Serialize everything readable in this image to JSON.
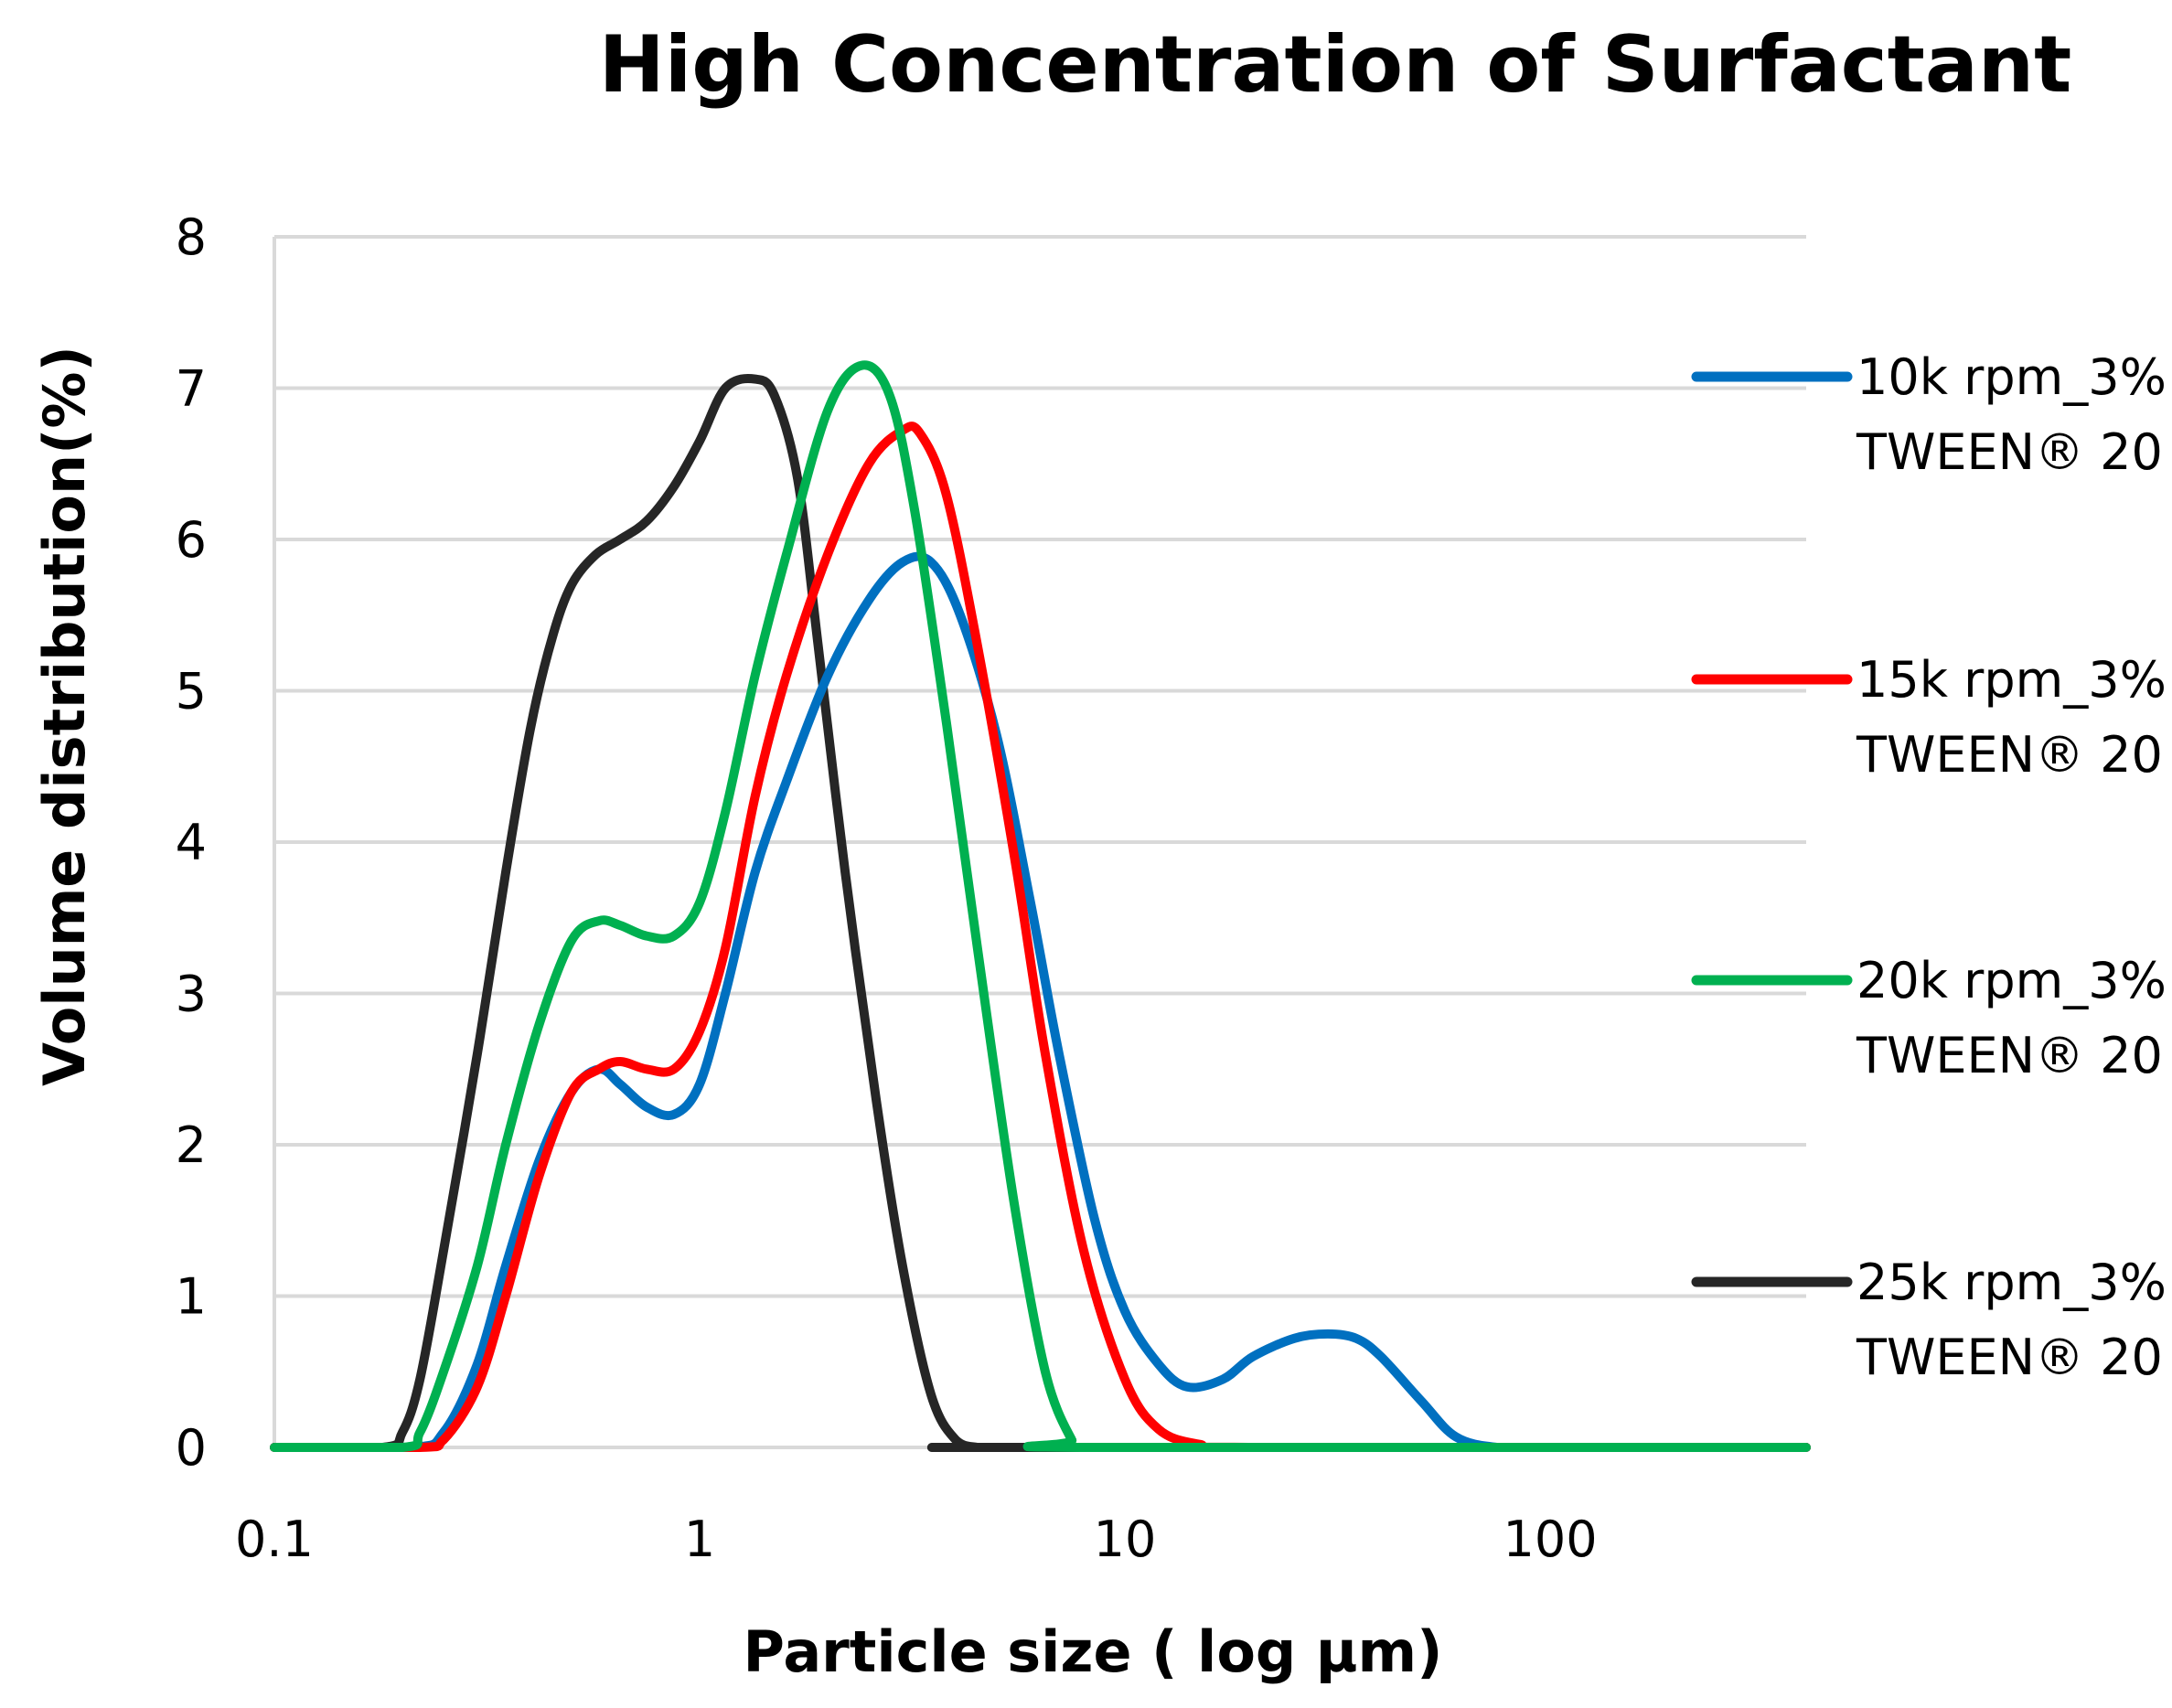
{
  "chart_data": {
    "type": "line",
    "title": "High Concentration of Surfactant",
    "xlabel": "Particle size ( log µm)",
    "ylabel": "Volume distribution(%)",
    "xscale": "log",
    "xlim": [
      0.1,
      400
    ],
    "ylim": [
      0,
      8
    ],
    "xticks": [
      {
        "value": 0.1,
        "label": "0.1"
      },
      {
        "value": 1,
        "label": "1"
      },
      {
        "value": 10,
        "label": "10"
      },
      {
        "value": 100,
        "label": "100"
      }
    ],
    "yticks": [
      {
        "value": 0,
        "label": "0"
      },
      {
        "value": 1,
        "label": "1"
      },
      {
        "value": 2,
        "label": "2"
      },
      {
        "value": 3,
        "label": "3"
      },
      {
        "value": 4,
        "label": "4"
      },
      {
        "value": 5,
        "label": "5"
      },
      {
        "value": 6,
        "label": "6"
      },
      {
        "value": 7,
        "label": "7"
      },
      {
        "value": 8,
        "label": "8"
      }
    ],
    "grid": true,
    "legend_position": "right",
    "series": [
      {
        "name": "10k rpm_3% TWEEN® 20",
        "legend_line1": "10k rpm_3%",
        "legend_line2": "TWEEN® 20",
        "color": "#0070C0",
        "x": [
          0.1,
          0.21,
          0.25,
          0.3,
          0.35,
          0.42,
          0.5,
          0.58,
          0.65,
          0.75,
          0.87,
          1.0,
          1.15,
          1.35,
          1.6,
          2.0,
          2.5,
          3.0,
          3.5,
          4.1,
          5.0,
          6.0,
          7.0,
          8.5,
          10,
          12,
          14,
          17,
          20,
          25,
          30,
          35,
          40,
          50,
          60,
          75,
          100,
          200,
          400
        ],
        "y": [
          0,
          0,
          0.1,
          0.55,
          1.2,
          1.9,
          2.35,
          2.5,
          2.4,
          2.25,
          2.2,
          2.4,
          3.0,
          3.8,
          4.4,
          5.1,
          5.6,
          5.85,
          5.85,
          5.5,
          4.7,
          3.6,
          2.6,
          1.5,
          0.9,
          0.55,
          0.4,
          0.45,
          0.6,
          0.72,
          0.75,
          0.72,
          0.6,
          0.3,
          0.07,
          0,
          0,
          0,
          0
        ]
      },
      {
        "name": "15k rpm_3% TWEEN® 20",
        "legend_line1": "15k rpm_3%",
        "legend_line2": "TWEEN® 20",
        "color": "#FF0000",
        "x": [
          0.1,
          0.22,
          0.25,
          0.3,
          0.35,
          0.42,
          0.5,
          0.58,
          0.65,
          0.75,
          0.87,
          1.0,
          1.15,
          1.35,
          1.6,
          2.0,
          2.5,
          3.0,
          3.3,
          3.8,
          4.5,
          5.5,
          6.5,
          8.0,
          10,
          12,
          15,
          20,
          400
        ],
        "y": [
          0,
          0,
          0.05,
          0.4,
          1.0,
          1.8,
          2.35,
          2.5,
          2.55,
          2.5,
          2.5,
          2.75,
          3.3,
          4.3,
          5.1,
          5.9,
          6.5,
          6.72,
          6.7,
          6.3,
          5.3,
          3.9,
          2.6,
          1.3,
          0.45,
          0.12,
          0.02,
          0,
          0
        ]
      },
      {
        "name": "20k rpm_3% TWEEN® 20",
        "legend_line1": "20k rpm_3%",
        "legend_line2": "TWEEN® 20",
        "color": "#00B050",
        "x": [
          0.1,
          0.2,
          0.22,
          0.25,
          0.3,
          0.35,
          0.42,
          0.5,
          0.58,
          0.65,
          0.75,
          0.87,
          1.0,
          1.15,
          1.35,
          1.6,
          2.0,
          2.4,
          2.8,
          3.2,
          3.8,
          4.5,
          5.5,
          6.5,
          7.5,
          8.0,
          400
        ],
        "y": [
          0,
          0,
          0.1,
          0.5,
          1.2,
          2.0,
          2.8,
          3.35,
          3.48,
          3.45,
          3.38,
          3.38,
          3.6,
          4.2,
          5.1,
          5.9,
          6.85,
          7.15,
          6.95,
          6.2,
          4.8,
          3.3,
          1.6,
          0.5,
          0.05,
          0,
          0
        ]
      },
      {
        "name": "25k rpm_3% TWEEN® 20",
        "legend_line1": "25k rpm_3%",
        "legend_line2": "TWEEN® 20",
        "color": "#262626",
        "x": [
          0.1,
          0.18,
          0.2,
          0.22,
          0.25,
          0.3,
          0.35,
          0.4,
          0.45,
          0.5,
          0.57,
          0.65,
          0.75,
          0.87,
          1.0,
          1.15,
          1.35,
          1.5,
          1.7,
          1.9,
          2.2,
          2.6,
          3.0,
          3.5,
          4.0,
          4.5,
          5.0,
          400
        ],
        "y": [
          0,
          0,
          0.1,
          0.45,
          1.3,
          2.6,
          3.8,
          4.75,
          5.35,
          5.7,
          5.9,
          6.0,
          6.12,
          6.35,
          6.65,
          7.0,
          7.06,
          6.95,
          6.4,
          5.3,
          3.8,
          2.3,
          1.2,
          0.35,
          0.05,
          0,
          0,
          0
        ]
      }
    ]
  }
}
